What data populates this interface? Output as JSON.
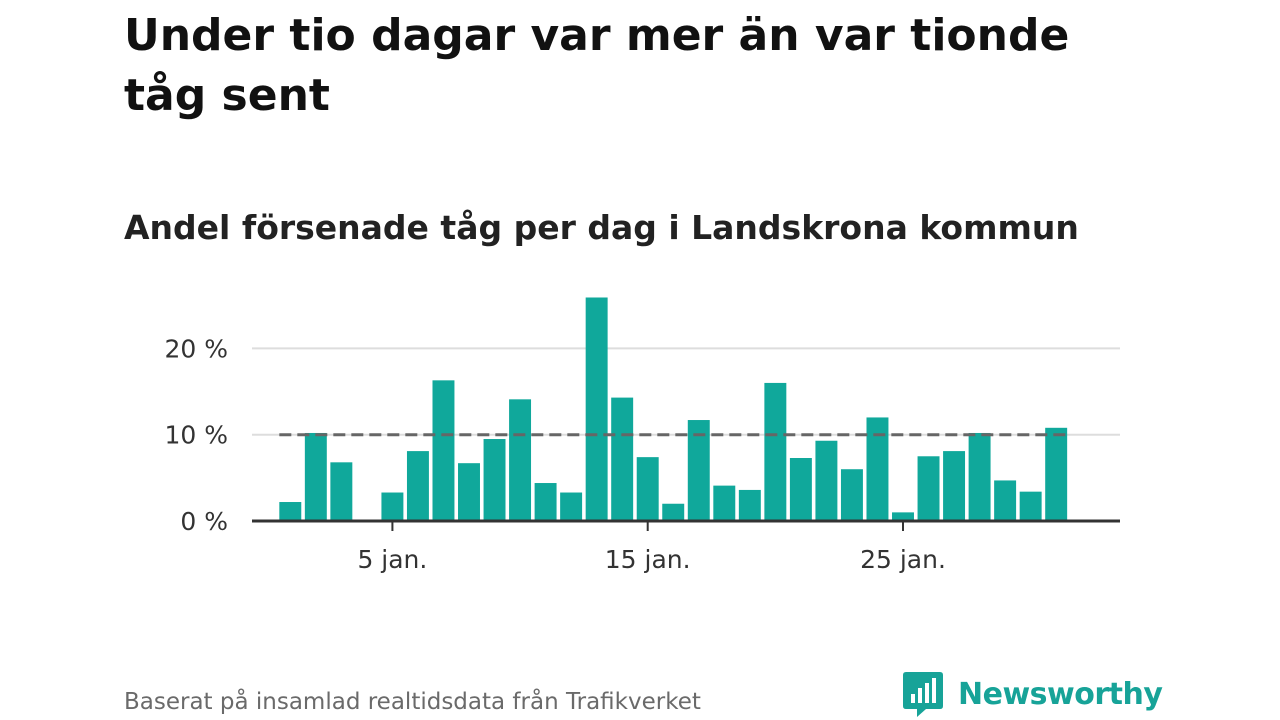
{
  "header": {
    "title": "Under tio dagar var mer än var tionde tåg sent",
    "subtitle": "Andel försenade tåg per dag i Landskrona kommun"
  },
  "footer": {
    "source": "Baserat på insamlad realtidsdata från Trafikverket",
    "brand": "Newsworthy"
  },
  "colors": {
    "bar": "#10a89b",
    "reference_line": "#666666",
    "grid": "#dddddd",
    "axis": "#333333",
    "brand": "#17a398"
  },
  "chart_data": {
    "type": "bar",
    "x": [
      1,
      2,
      3,
      4,
      5,
      6,
      7,
      8,
      9,
      10,
      11,
      12,
      13,
      14,
      15,
      16,
      17,
      18,
      19,
      20,
      21,
      22,
      23,
      24,
      25,
      26,
      27,
      28,
      29,
      30,
      31
    ],
    "values": [
      2.2,
      10.2,
      6.8,
      0,
      3.3,
      8.1,
      16.3,
      6.7,
      9.5,
      14.1,
      4.4,
      3.3,
      25.9,
      14.3,
      7.4,
      2.0,
      11.7,
      4.1,
      3.6,
      16.0,
      7.3,
      9.3,
      6.0,
      12.0,
      1.0,
      7.5,
      8.1,
      10.2,
      4.7,
      3.4,
      10.8
    ],
    "reference_value": 10,
    "reference_style": "dashed",
    "x_ticks": [
      5,
      15,
      25
    ],
    "x_tick_labels": [
      "5 jan.",
      "15 jan.",
      "25 jan."
    ],
    "y_ticks": [
      0,
      10,
      20
    ],
    "y_tick_labels": [
      "0 %",
      "10 %",
      "20 %"
    ],
    "ylim": [
      0,
      27
    ],
    "xlim": [
      -0.5,
      33.5
    ],
    "grid": "horizontal"
  }
}
